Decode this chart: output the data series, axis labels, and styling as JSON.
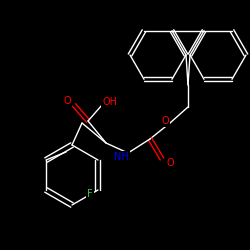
{
  "background_color": "#000000",
  "bond_color": "#ffffff",
  "atom_colors": {
    "O": "#ff0000",
    "N": "#0000ff",
    "F": "#3ccc3c",
    "C": "#ffffff"
  },
  "figsize": [
    2.5,
    2.5
  ],
  "dpi": 100
}
